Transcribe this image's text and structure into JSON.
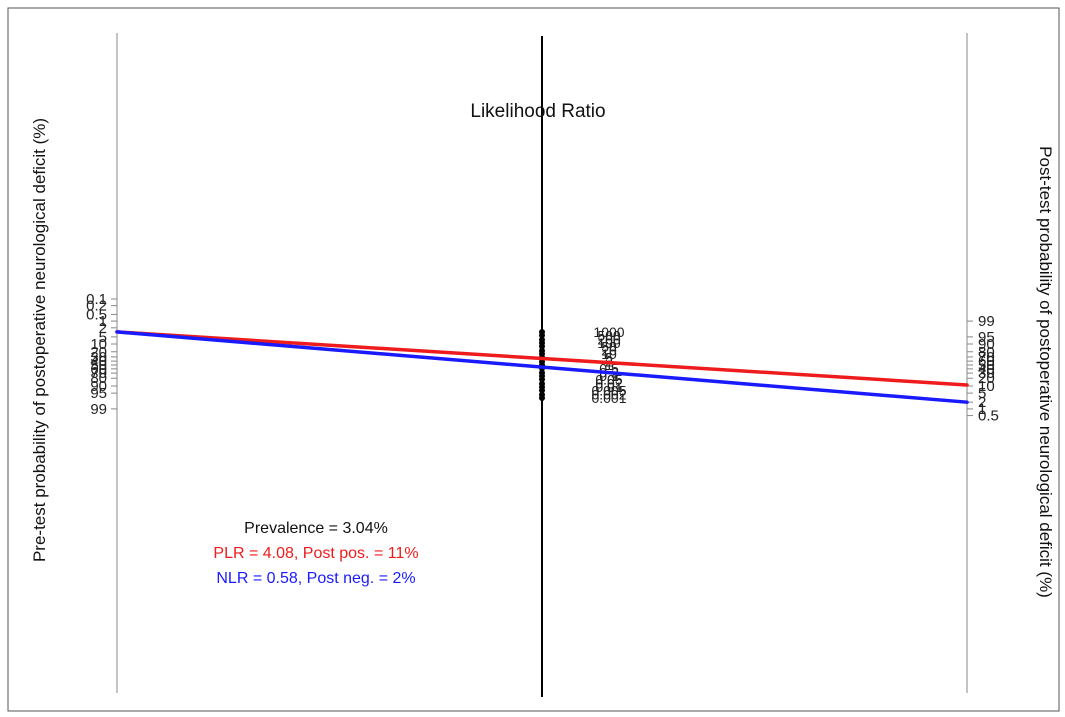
{
  "chart_data": {
    "type": "line",
    "subtype": "fagan-nomogram",
    "center_axis_title": "Likelihood Ratio",
    "left_axis": {
      "label": "Pre-test probability of postoperative neurological deficit (%)",
      "ticks": [
        "0.1",
        "0.2",
        "0.5",
        "1",
        "2",
        "5",
        "10",
        "20",
        "30",
        "40",
        "50",
        "60",
        "70",
        "80",
        "90",
        "95",
        "99"
      ]
    },
    "right_axis": {
      "label": "Post-test probability of postoperative neurological deficit (%)",
      "ticks": [
        "99",
        "95",
        "90",
        "80",
        "70",
        "60",
        "50",
        "40",
        "30",
        "20",
        "10",
        "5",
        "2",
        "1",
        "0.5"
      ]
    },
    "likelihood_ratio_ticks": [
      "1000",
      "500",
      "200",
      "100",
      "50",
      "20",
      "10",
      "5",
      "2",
      "1",
      "0.5",
      "0.2",
      "0.1",
      "0.05",
      "0.02",
      "0.01",
      "0.005",
      "0.002",
      "0.001"
    ],
    "series": [
      {
        "name": "PLR = 4.08, Post pos. = 11%",
        "color": "#ee1c1c",
        "x": [
          "pre-test",
          "post-test"
        ],
        "y": [
          3.04,
          11
        ]
      },
      {
        "name": "NLR = 0.58, Post neg. = 2%",
        "color": "#1a1aff",
        "x": [
          "pre-test",
          "post-test"
        ],
        "y": [
          3.04,
          2
        ]
      }
    ],
    "annotations": [
      {
        "text": "Prevalence = 3.04%",
        "color": "#111111"
      },
      {
        "text": "PLR = 4.08, Post pos. = 11%",
        "color": "#ee1c1c"
      },
      {
        "text": "NLR = 0.58, Post neg. = 2%",
        "color": "#1a1aff"
      }
    ]
  }
}
